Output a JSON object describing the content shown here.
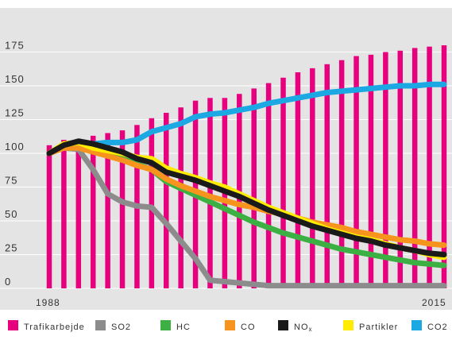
{
  "chart_data": {
    "type": "bar+line",
    "title": "",
    "xlabel": "",
    "ylabel": "",
    "x_start_label": "1988",
    "x_end_label": "2015",
    "years": [
      1988,
      1989,
      1990,
      1991,
      1992,
      1993,
      1994,
      1995,
      1996,
      1997,
      1998,
      1999,
      2000,
      2001,
      2002,
      2003,
      2004,
      2005,
      2006,
      2007,
      2008,
      2009,
      2010,
      2011,
      2012,
      2013,
      2014,
      2015
    ],
    "ylim": [
      0,
      180
    ],
    "yticks": [
      0,
      25,
      50,
      75,
      100,
      125,
      150,
      175
    ],
    "grid": true,
    "legend_position": "bottom",
    "bar_series": {
      "name": "Trafikarbejde",
      "color": "#e6007e",
      "values": [
        106,
        110,
        110,
        113,
        115,
        117,
        121,
        126,
        130,
        134,
        139,
        141,
        141,
        144,
        148,
        152,
        156,
        160,
        163,
        166,
        169,
        172,
        173,
        175,
        176,
        178,
        179,
        180
      ]
    },
    "series": [
      {
        "name": "SO2",
        "color": "#8c8c8c",
        "values": [
          100,
          104,
          103,
          88,
          70,
          64,
          61,
          60,
          48,
          35,
          22,
          6,
          5,
          4,
          3,
          2,
          2,
          2,
          2,
          2,
          2,
          2,
          2,
          2,
          2,
          2,
          2,
          2
        ]
      },
      {
        "name": "HC",
        "color": "#3cb043",
        "values": [
          100,
          105,
          106,
          103,
          99,
          96,
          92,
          88,
          79,
          74,
          69,
          64,
          59,
          54,
          49,
          45,
          41,
          38,
          35,
          32,
          29,
          27,
          25,
          23,
          21,
          19,
          18,
          17
        ]
      },
      {
        "name": "CO",
        "color": "#f7941d",
        "values": [
          100,
          104,
          104,
          101,
          98,
          95,
          91,
          88,
          81,
          76,
          72,
          68,
          65,
          62,
          60,
          57,
          55,
          52,
          49,
          47,
          45,
          42,
          40,
          38,
          36,
          35,
          33,
          32
        ]
      },
      {
        "name": "NOₓ",
        "color": "#1a1a1a",
        "values": [
          100,
          106,
          109,
          107,
          104,
          101,
          96,
          93,
          86,
          83,
          80,
          76,
          72,
          68,
          63,
          58,
          54,
          50,
          46,
          43,
          40,
          37,
          35,
          32,
          30,
          28,
          26,
          25
        ]
      },
      {
        "name": "Partikler",
        "color": "#ffec00",
        "values": [
          100,
          107,
          108,
          104,
          102,
          100,
          97,
          96,
          89,
          85,
          82,
          78,
          75,
          70,
          65,
          60,
          56,
          52,
          48,
          44,
          41,
          38,
          36,
          33,
          30,
          28,
          25,
          23
        ]
      },
      {
        "name": "CO2",
        "color": "#1ca8e3",
        "values": [
          100,
          105,
          107,
          107,
          108,
          108,
          110,
          116,
          119,
          122,
          127,
          129,
          130,
          132,
          134,
          137,
          139,
          141,
          143,
          145,
          146,
          147,
          148,
          149,
          150,
          150,
          151,
          151
        ]
      }
    ]
  },
  "legend": {
    "items": [
      {
        "label": "Trafikarbejde",
        "color": "#e6007e"
      },
      {
        "label": "SO2",
        "color": "#8c8c8c"
      },
      {
        "label": "HC",
        "color": "#3cb043"
      },
      {
        "label": "CO",
        "color": "#f7941d"
      },
      {
        "label": "NO",
        "sub": "x",
        "color": "#1a1a1a"
      },
      {
        "label": "Partikler",
        "color": "#ffec00"
      },
      {
        "label": "CO2",
        "color": "#1ca8e3"
      }
    ]
  },
  "colors": {
    "plot_background": "#e4e4e4",
    "gridline": "#ffffff",
    "tick_text": "#333333"
  }
}
